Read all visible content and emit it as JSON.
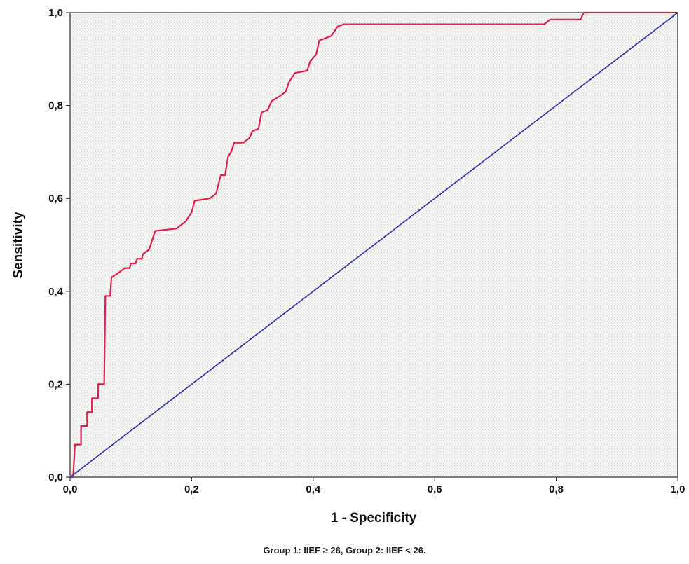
{
  "chart_data": {
    "type": "line",
    "title": "",
    "xlabel": "1 - Specificity",
    "ylabel": "Sensitivity",
    "xlim": [
      0,
      1
    ],
    "ylim": [
      0,
      1
    ],
    "x_ticks": [
      "0,0",
      "0,2",
      "0,4",
      "0,6",
      "0,8",
      "1,0"
    ],
    "y_ticks": [
      "0,0",
      "0,2",
      "0,4",
      "0,6",
      "0,8",
      "1,0"
    ],
    "grid": false,
    "legend": "none",
    "colors": {
      "roc": "#e0204a",
      "reference": "#3b3fa8",
      "plot_bg": "#f2f2f0",
      "frame": "#555555"
    },
    "series": [
      {
        "role": "roc-curve",
        "points": [
          [
            0.0,
            0.0
          ],
          [
            0.005,
            0.0
          ],
          [
            0.008,
            0.07
          ],
          [
            0.018,
            0.07
          ],
          [
            0.018,
            0.11
          ],
          [
            0.028,
            0.11
          ],
          [
            0.028,
            0.14
          ],
          [
            0.036,
            0.14
          ],
          [
            0.036,
            0.17
          ],
          [
            0.046,
            0.17
          ],
          [
            0.046,
            0.2
          ],
          [
            0.056,
            0.2
          ],
          [
            0.058,
            0.39
          ],
          [
            0.066,
            0.39
          ],
          [
            0.068,
            0.43
          ],
          [
            0.08,
            0.44
          ],
          [
            0.09,
            0.45
          ],
          [
            0.098,
            0.45
          ],
          [
            0.1,
            0.46
          ],
          [
            0.108,
            0.46
          ],
          [
            0.11,
            0.47
          ],
          [
            0.118,
            0.47
          ],
          [
            0.12,
            0.48
          ],
          [
            0.13,
            0.49
          ],
          [
            0.14,
            0.53
          ],
          [
            0.175,
            0.535
          ],
          [
            0.19,
            0.55
          ],
          [
            0.2,
            0.57
          ],
          [
            0.205,
            0.595
          ],
          [
            0.23,
            0.6
          ],
          [
            0.24,
            0.61
          ],
          [
            0.248,
            0.65
          ],
          [
            0.255,
            0.65
          ],
          [
            0.26,
            0.69
          ],
          [
            0.265,
            0.7
          ],
          [
            0.27,
            0.72
          ],
          [
            0.285,
            0.72
          ],
          [
            0.295,
            0.73
          ],
          [
            0.3,
            0.745
          ],
          [
            0.31,
            0.75
          ],
          [
            0.315,
            0.785
          ],
          [
            0.325,
            0.79
          ],
          [
            0.332,
            0.81
          ],
          [
            0.345,
            0.82
          ],
          [
            0.355,
            0.83
          ],
          [
            0.36,
            0.85
          ],
          [
            0.37,
            0.87
          ],
          [
            0.39,
            0.875
          ],
          [
            0.395,
            0.895
          ],
          [
            0.405,
            0.91
          ],
          [
            0.41,
            0.94
          ],
          [
            0.43,
            0.95
          ],
          [
            0.44,
            0.97
          ],
          [
            0.45,
            0.975
          ],
          [
            0.78,
            0.975
          ],
          [
            0.79,
            0.985
          ],
          [
            0.84,
            0.985
          ],
          [
            0.845,
            1.0
          ],
          [
            1.0,
            1.0
          ]
        ]
      },
      {
        "role": "reference-line",
        "points": [
          [
            0.0,
            0.0
          ],
          [
            1.0,
            1.0
          ]
        ]
      }
    ]
  },
  "caption": "Group 1: IIEF ≥ 26, Group 2: IIEF < 26."
}
